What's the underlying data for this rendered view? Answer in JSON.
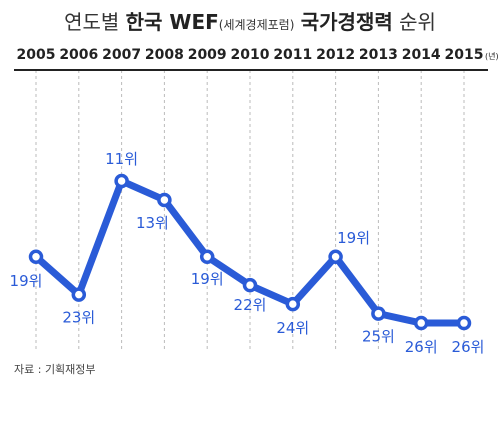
{
  "title": {
    "part1": "연도별",
    "part2": "한국 WEF",
    "part3": "(세계경제포럼)",
    "part4": "국가경쟁력",
    "part5": "순위"
  },
  "source": "자료 : 기획재정부",
  "colors": {
    "line": "#2a5bd7",
    "label": "#2a5bd7",
    "axis": "#222222",
    "year_text": "#222222",
    "grid": "#bbbbbb"
  },
  "chart_data": {
    "type": "line",
    "x": [
      "2005",
      "2006",
      "2007",
      "2008",
      "2009",
      "2010",
      "2011",
      "2012",
      "2013",
      "2014",
      "2015"
    ],
    "x_unit": "(년)",
    "series": [
      {
        "values": [
          19,
          23,
          11,
          13,
          19,
          22,
          24,
          19,
          25,
          26,
          26
        ],
        "labels": [
          "19위",
          "23위",
          "11위",
          "13위",
          "19위",
          "22위",
          "24위",
          "19위",
          "25위",
          "26위",
          "26위"
        ]
      }
    ],
    "y_axis": "inverted rank (lower rank drawn higher)",
    "grid": "vertical dashed lines at each year",
    "legend": "none"
  }
}
